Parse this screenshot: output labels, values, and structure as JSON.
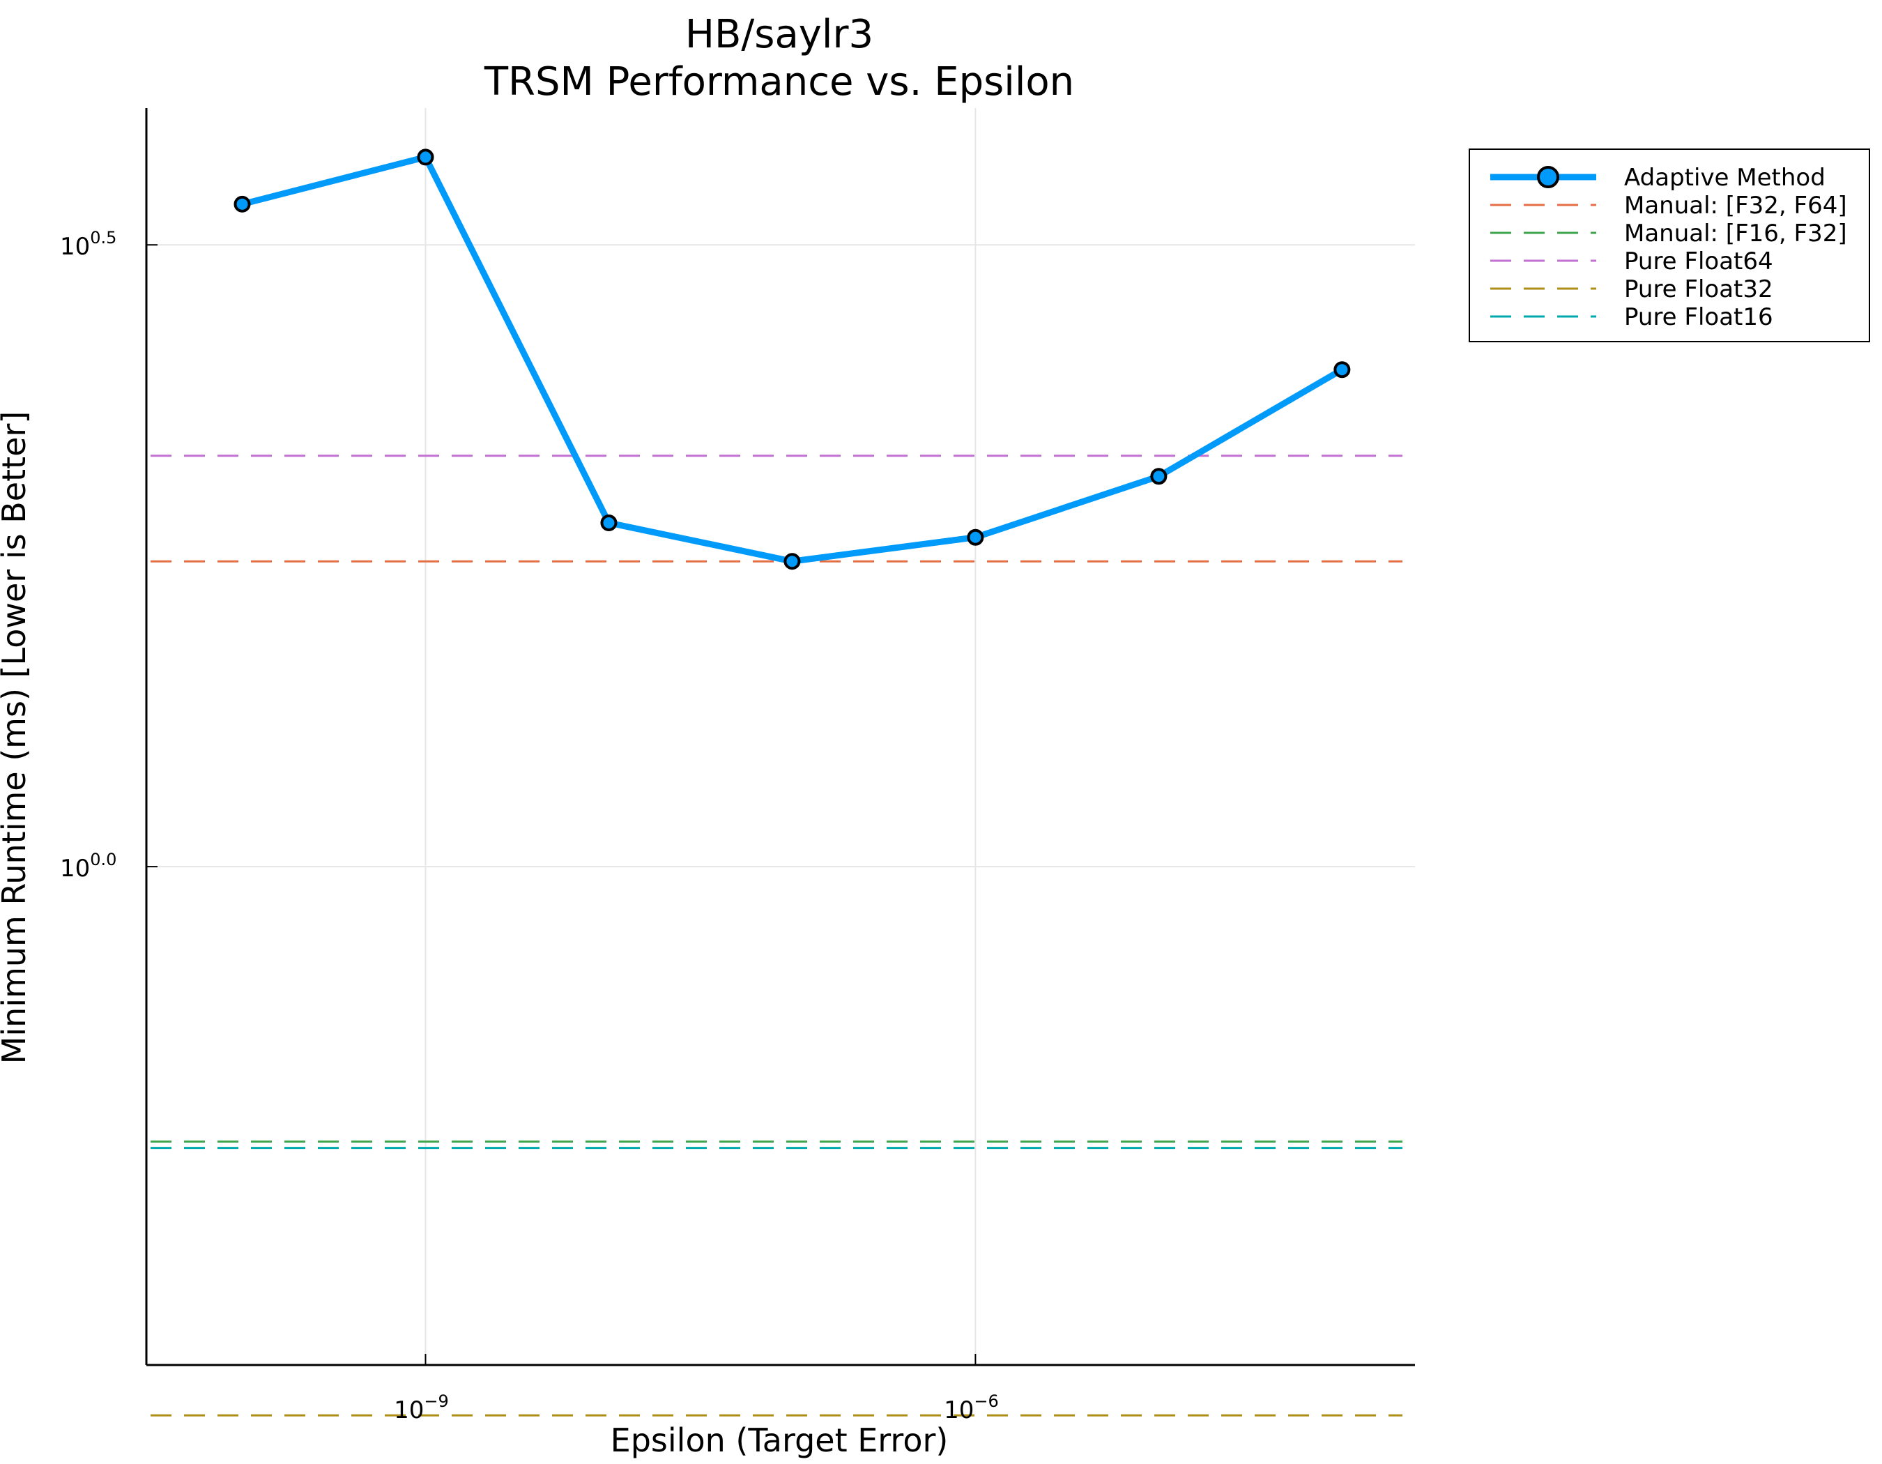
{
  "chart_data": {
    "type": "line",
    "title": "HB/saylr3",
    "subtitle": "TRSM Performance vs. Epsilon",
    "xlabel": "Epsilon (Target Error)",
    "ylabel": "Minimum Runtime (ms) [Lower is Better]",
    "xscale": "log10",
    "yscale": "log10",
    "xlim": [
      3e-11,
      0.00025
    ],
    "ylim": [
      0.3974,
      4.074
    ],
    "grid": true,
    "legend_position": "outside-top-right",
    "x_ticks": [
      {
        "value": 1e-09,
        "base": "10",
        "exp": "−9"
      },
      {
        "value": 1e-06,
        "base": "10",
        "exp": "−6"
      }
    ],
    "y_ticks": [
      {
        "value": 3.1623,
        "base": "10",
        "exp": "0.5"
      },
      {
        "value": 1.0,
        "base": "10",
        "exp": "0.0"
      }
    ],
    "series": [
      {
        "name": "Adaptive Method",
        "color": "#009AFA",
        "style": "solid-markers",
        "x": [
          1e-10,
          1e-09,
          1e-08,
          1e-07,
          1e-06,
          1e-05,
          0.0001
        ],
        "y": [
          3.41,
          3.72,
          1.89,
          1.76,
          1.84,
          2.06,
          2.51
        ]
      },
      {
        "name": "Manual: [F32, F64]",
        "color": "#E36F47",
        "style": "dashed",
        "y": 1.76
      },
      {
        "name": "Manual: [F16, F32]",
        "color": "#3EA44E",
        "style": "dashed",
        "y": 0.601
      },
      {
        "name": "Pure Float64",
        "color": "#C271D2",
        "style": "dashed",
        "y": 2.14
      },
      {
        "name": "Pure Float32",
        "color": "#AC8E18",
        "style": "dashed",
        "y": 0.362
      },
      {
        "name": "Pure Float16",
        "color": "#00A9AD",
        "style": "dashed",
        "y": 0.594
      }
    ]
  }
}
